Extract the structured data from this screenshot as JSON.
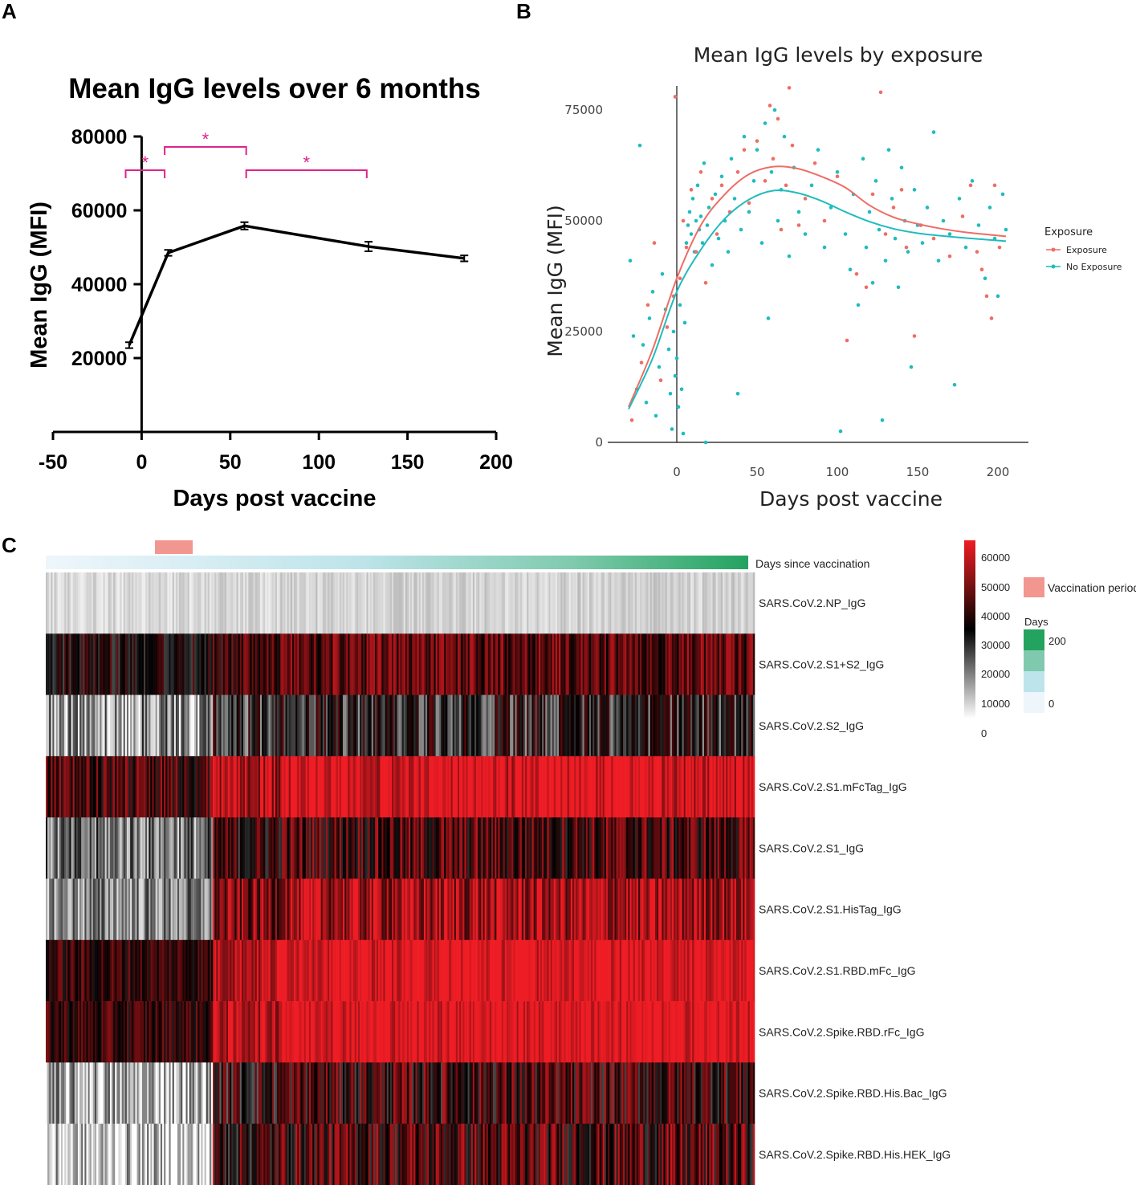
{
  "panels": {
    "a_label": "A",
    "b_label": "B",
    "c_label": "C"
  },
  "colors": {
    "exposure": "#ee6d65",
    "no_exposure": "#1fbcbd",
    "significance": "#e0228c",
    "line_a": "#000000",
    "vaccination_period": "#f29690",
    "heat_low": "#ffffff",
    "heat_mid": "#000000",
    "heat_high": "#ee1c24",
    "days_low": "#eef6fb",
    "days_high": "#23a35f"
  },
  "chart_data": [
    {
      "id": "A",
      "type": "line",
      "title": "Mean IgG levels over 6 months",
      "xlabel": "Days post vaccine",
      "ylabel": "Mean IgG  (MFI)",
      "xlim": [
        -50,
        200
      ],
      "ylim": [
        0,
        80000
      ],
      "xticks": [
        "-50",
        "0",
        "50",
        "100",
        "150",
        "200"
      ],
      "yticks": [
        "20000",
        "40000",
        "60000",
        "80000"
      ],
      "x": [
        -7,
        15,
        58,
        128,
        182
      ],
      "y": [
        23500,
        48500,
        55800,
        50200,
        47000
      ],
      "err": [
        800,
        800,
        1000,
        1300,
        800
      ],
      "significance": [
        {
          "from": -9,
          "to": 13,
          "label": "*"
        },
        {
          "from": 13,
          "to": 59,
          "label": "*"
        },
        {
          "from": 59,
          "to": 127,
          "label": "*"
        }
      ]
    },
    {
      "id": "B",
      "type": "scatter",
      "title": "Mean IgG levels by exposure",
      "xlabel": "Days post vaccine",
      "ylabel": "Mean IgG (MFI)",
      "xlim": [
        -30,
        205
      ],
      "ylim": [
        0,
        80000
      ],
      "xticks": [
        "0",
        "50",
        "100",
        "150",
        "200"
      ],
      "yticks": [
        "0",
        "25000",
        "50000",
        "75000"
      ],
      "legend_title": "Exposure",
      "series": [
        {
          "name": "Exposure",
          "smooth_x": [
            -30,
            -15,
            0,
            15,
            30,
            45,
            60,
            75,
            90,
            105,
            120,
            135,
            150,
            165,
            180,
            205
          ],
          "smooth_y": [
            8000,
            21000,
            37000,
            49000,
            56000,
            60500,
            62200,
            61800,
            60000,
            57500,
            53500,
            50800,
            49300,
            48200,
            47400,
            46500
          ],
          "points": [
            [
              -28,
              5000
            ],
            [
              -22,
              18000
            ],
            [
              -18,
              31000
            ],
            [
              -14,
              45000
            ],
            [
              -10,
              14000
            ],
            [
              -6,
              26000
            ],
            [
              -2,
              33000
            ],
            [
              -1,
              78000
            ],
            [
              2,
              37000
            ],
            [
              4,
              50000
            ],
            [
              6,
              44000
            ],
            [
              9,
              57000
            ],
            [
              12,
              43000
            ],
            [
              15,
              61000
            ],
            [
              18,
              36000
            ],
            [
              22,
              55000
            ],
            [
              25,
              47000
            ],
            [
              28,
              58000
            ],
            [
              33,
              52000
            ],
            [
              38,
              61000
            ],
            [
              42,
              66000
            ],
            [
              45,
              54000
            ],
            [
              50,
              68000
            ],
            [
              55,
              59000
            ],
            [
              58,
              76000
            ],
            [
              60,
              64000
            ],
            [
              63,
              73000
            ],
            [
              65,
              48000
            ],
            [
              68,
              58000
            ],
            [
              70,
              80000
            ],
            [
              72,
              67000
            ],
            [
              76,
              49000
            ],
            [
              80,
              55000
            ],
            [
              86,
              63000
            ],
            [
              92,
              50000
            ],
            [
              100,
              60000
            ],
            [
              106,
              23000
            ],
            [
              112,
              38000
            ],
            [
              118,
              35000
            ],
            [
              122,
              56000
            ],
            [
              127,
              79000
            ],
            [
              130,
              47000
            ],
            [
              135,
              53000
            ],
            [
              140,
              57000
            ],
            [
              143,
              44000
            ],
            [
              148,
              24000
            ],
            [
              152,
              49000
            ],
            [
              160,
              46000
            ],
            [
              170,
              42000
            ],
            [
              178,
              51000
            ],
            [
              183,
              58000
            ],
            [
              187,
              43000
            ],
            [
              190,
              39000
            ],
            [
              193,
              33000
            ],
            [
              196,
              28000
            ],
            [
              198,
              58000
            ],
            [
              201,
              44000
            ]
          ]
        },
        {
          "name": "No Exposure",
          "smooth_x": [
            -30,
            -15,
            0,
            15,
            30,
            45,
            60,
            75,
            90,
            105,
            120,
            135,
            150,
            165,
            180,
            205
          ],
          "smooth_y": [
            7500,
            19000,
            34000,
            43500,
            50500,
            54800,
            56800,
            56300,
            54500,
            52000,
            49800,
            48200,
            47200,
            46600,
            46100,
            45400
          ],
          "points": [
            [
              -29,
              41000
            ],
            [
              -27,
              24000
            ],
            [
              -25,
              12000
            ],
            [
              -23,
              67000
            ],
            [
              -21,
              22000
            ],
            [
              -19,
              9000
            ],
            [
              -17,
              28000
            ],
            [
              -15,
              34000
            ],
            [
              -13,
              6000
            ],
            [
              -11,
              17000
            ],
            [
              -9,
              38000
            ],
            [
              -7,
              30000
            ],
            [
              -5,
              21000
            ],
            [
              -4,
              11000
            ],
            [
              -3,
              3000
            ],
            [
              -2,
              25000
            ],
            [
              -1,
              15000
            ],
            [
              0,
              19000
            ],
            [
              1,
              8000
            ],
            [
              2,
              31000
            ],
            [
              3,
              12000
            ],
            [
              4,
              2000
            ],
            [
              5,
              27000
            ],
            [
              6,
              45000
            ],
            [
              7,
              49000
            ],
            [
              8,
              52000
            ],
            [
              9,
              47000
            ],
            [
              10,
              55000
            ],
            [
              11,
              43000
            ],
            [
              12,
              50000
            ],
            [
              13,
              58000
            ],
            [
              14,
              48000
            ],
            [
              15,
              51000
            ],
            [
              16,
              45000
            ],
            [
              17,
              63000
            ],
            [
              18,
              0
            ],
            [
              19,
              49000
            ],
            [
              20,
              53000
            ],
            [
              22,
              40000
            ],
            [
              24,
              56000
            ],
            [
              26,
              46000
            ],
            [
              28,
              60000
            ],
            [
              30,
              50000
            ],
            [
              32,
              43000
            ],
            [
              34,
              64000
            ],
            [
              36,
              55000
            ],
            [
              38,
              11000
            ],
            [
              40,
              48000
            ],
            [
              42,
              69000
            ],
            [
              45,
              52000
            ],
            [
              48,
              59000
            ],
            [
              50,
              66000
            ],
            [
              53,
              45000
            ],
            [
              55,
              72000
            ],
            [
              57,
              28000
            ],
            [
              59,
              61000
            ],
            [
              61,
              75000
            ],
            [
              63,
              50000
            ],
            [
              65,
              57000
            ],
            [
              67,
              69000
            ],
            [
              70,
              42000
            ],
            [
              73,
              62000
            ],
            [
              76,
              52000
            ],
            [
              80,
              47000
            ],
            [
              84,
              58000
            ],
            [
              88,
              66000
            ],
            [
              92,
              44000
            ],
            [
              96,
              53000
            ],
            [
              100,
              61000
            ],
            [
              102,
              2500
            ],
            [
              105,
              47000
            ],
            [
              108,
              39000
            ],
            [
              110,
              56000
            ],
            [
              113,
              31000
            ],
            [
              116,
              64000
            ],
            [
              118,
              44000
            ],
            [
              120,
              52000
            ],
            [
              122,
              36000
            ],
            [
              124,
              59000
            ],
            [
              126,
              48000
            ],
            [
              128,
              5000
            ],
            [
              130,
              41000
            ],
            [
              132,
              66000
            ],
            [
              134,
              55000
            ],
            [
              136,
              46000
            ],
            [
              138,
              35000
            ],
            [
              140,
              62000
            ],
            [
              142,
              50000
            ],
            [
              144,
              43000
            ],
            [
              146,
              17000
            ],
            [
              148,
              57000
            ],
            [
              150,
              49000
            ],
            [
              153,
              45000
            ],
            [
              156,
              53000
            ],
            [
              160,
              70000
            ],
            [
              163,
              41000
            ],
            [
              166,
              50000
            ],
            [
              170,
              47000
            ],
            [
              173,
              13000
            ],
            [
              176,
              55000
            ],
            [
              180,
              44000
            ],
            [
              184,
              59000
            ],
            [
              188,
              49000
            ],
            [
              192,
              37000
            ],
            [
              195,
              53000
            ],
            [
              198,
              46000
            ],
            [
              200,
              33000
            ],
            [
              203,
              56000
            ],
            [
              205,
              48000
            ]
          ]
        }
      ]
    },
    {
      "id": "C",
      "type": "heatmap",
      "rows": [
        "SARS.CoV.2.NP_IgG",
        "SARS.CoV.2.S1+S2_IgG",
        "SARS.CoV.2.S2_IgG",
        "SARS.CoV.2.S1.mFcTag_IgG",
        "SARS.CoV.2.S1_IgG",
        "SARS.CoV.2.S1.HisTag_IgG",
        "SARS.CoV.2.S1.RBD.mFc_IgG",
        "SARS.CoV.2.Spike.RBD.rFc_IgG",
        "SARS.CoV.2.Spike.RBD.His.Bac_IgG",
        "SARS.CoV.2.Spike.RBD.His.HEK_IgG"
      ],
      "days_label": "Days since vaccination",
      "vaccination_period_label": "Vaccination period",
      "value_legend_ticks": [
        "60000",
        "50000",
        "40000",
        "30000",
        "20000",
        "10000",
        "0"
      ],
      "days_legend_title": "Days",
      "days_legend_ticks": [
        "200",
        "0"
      ],
      "row_means_early": [
        5000,
        35000,
        14000,
        42000,
        18000,
        16000,
        40000,
        40000,
        10000,
        6000
      ],
      "row_means_late": [
        6000,
        45000,
        30000,
        62000,
        42000,
        53000,
        62000,
        62000,
        40000,
        42000
      ],
      "row_spread": [
        2000,
        7000,
        10000,
        8000,
        9000,
        8000,
        6000,
        6000,
        10000,
        10000
      ]
    }
  ]
}
